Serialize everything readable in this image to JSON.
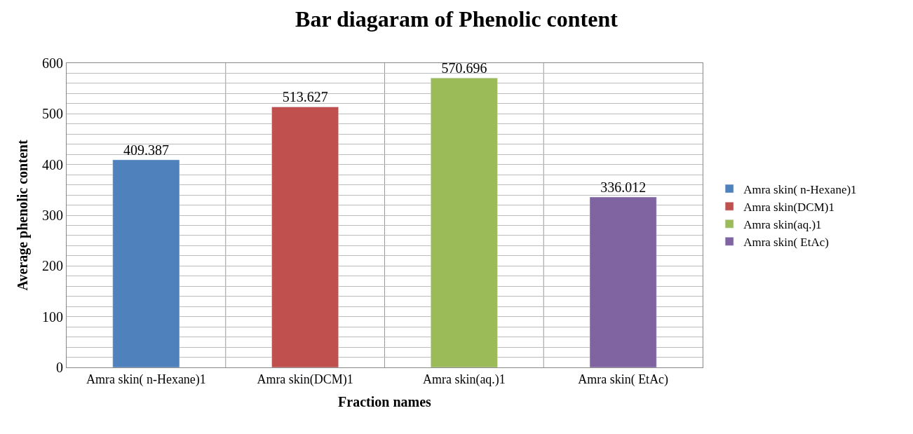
{
  "chart_data": {
    "type": "bar",
    "title": "Bar diagaram of Phenolic content",
    "xlabel": "Fraction names",
    "ylabel": "Average phenolic content",
    "categories": [
      "Amra skin( n-Hexane)1",
      "Amra skin(DCM)1",
      "Amra skin(aq.)1",
      "Amra skin( EtAc)"
    ],
    "series": [
      {
        "name": "Amra skin( n-Hexane)1",
        "color": "#4f81bd",
        "values": [
          409.387,
          null,
          null,
          null
        ]
      },
      {
        "name": "Amra skin(DCM)1",
        "color": "#c0504d",
        "values": [
          null,
          513.627,
          null,
          null
        ]
      },
      {
        "name": "Amra skin(aq.)1",
        "color": "#9bbb59",
        "values": [
          null,
          null,
          570.696,
          null
        ]
      },
      {
        "name": "Amra skin( EtAc)",
        "color": "#8064a2",
        "values": [
          null,
          null,
          null,
          336.012
        ]
      }
    ],
    "data_labels": true,
    "legend": "right",
    "grid": true,
    "ylim": [
      0,
      600
    ],
    "yticks": [
      0,
      {
        "value": 20,
        "label": null
      },
      {
        "value": 40,
        "label": null
      },
      {
        "value": 60,
        "label": null
      },
      {
        "value": 80,
        "label": null
      },
      100,
      {
        "value": 120,
        "label": null
      },
      {
        "value": 140,
        "label": null
      },
      {
        "value": 160,
        "label": null
      },
      {
        "value": 180,
        "label": null
      },
      200,
      {
        "value": 220,
        "label": null
      },
      {
        "value": 240,
        "label": null
      },
      {
        "value": 260,
        "label": null
      },
      {
        "value": 280,
        "label": null
      },
      300,
      {
        "value": 320,
        "label": null
      },
      {
        "value": 340,
        "label": null
      },
      {
        "value": 360,
        "label": null
      },
      {
        "value": 380,
        "label": null
      },
      400,
      {
        "value": 420,
        "label": null
      },
      {
        "value": 440,
        "label": null
      },
      {
        "value": 460,
        "label": null
      },
      {
        "value": 480,
        "label": null
      },
      500,
      {
        "value": 520,
        "label": null
      },
      {
        "value": 540,
        "label": null
      },
      {
        "value": 560,
        "label": null
      },
      {
        "value": 580,
        "label": null
      },
      600
    ]
  }
}
